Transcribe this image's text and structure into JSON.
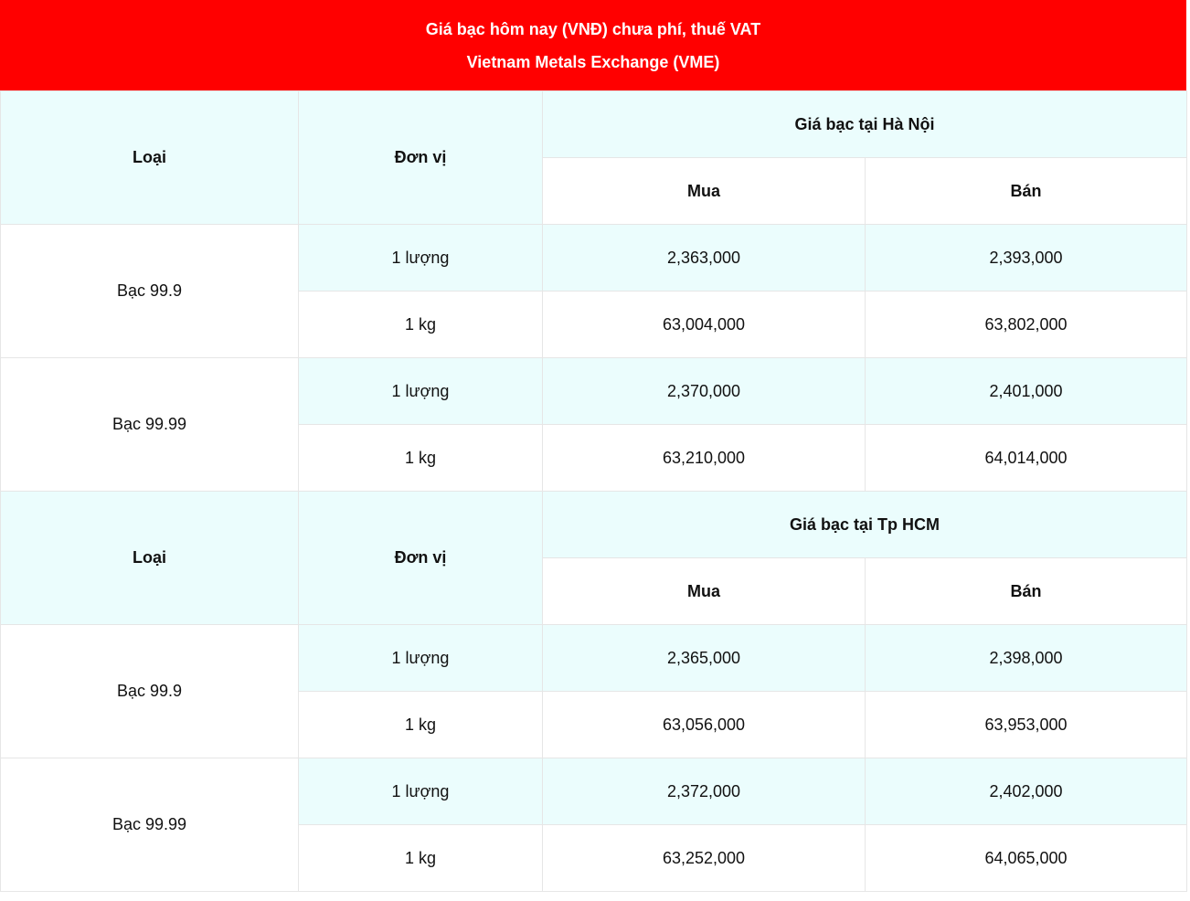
{
  "header": {
    "title_lines": [
      "Giá bạc hôm nay (VNĐ) chưa phí, thuế VAT",
      "Vietnam Metals Exchange (VME)"
    ]
  },
  "sections": [
    {
      "columns": {
        "type": "Loại",
        "unit": "Đơn vị",
        "location": "Giá bạc tại Hà Nội",
        "buy": "Mua",
        "sell": "Bán"
      },
      "groups": [
        {
          "type": "Bạc 99.9",
          "rows": [
            {
              "unit": "1 lượng",
              "buy": "2,363,000",
              "sell": "2,393,000"
            },
            {
              "unit": "1 kg",
              "buy": "63,004,000",
              "sell": "63,802,000"
            }
          ]
        },
        {
          "type": "Bạc 99.99",
          "rows": [
            {
              "unit": "1 lượng",
              "buy": "2,370,000",
              "sell": "2,401,000"
            },
            {
              "unit": "1 kg",
              "buy": "63,210,000",
              "sell": "64,014,000"
            }
          ]
        }
      ]
    },
    {
      "columns": {
        "type": "Loại",
        "unit": "Đơn vị",
        "location": "Giá bạc tại Tp HCM",
        "buy": "Mua",
        "sell": "Bán"
      },
      "groups": [
        {
          "type": "Bạc 99.9",
          "rows": [
            {
              "unit": "1 lượng",
              "buy": "2,365,000",
              "sell": "2,398,000"
            },
            {
              "unit": "1 kg",
              "buy": "63,056,000",
              "sell": "63,953,000"
            }
          ]
        },
        {
          "type": "Bạc 99.99",
          "rows": [
            {
              "unit": "1 lượng",
              "buy": "2,372,000",
              "sell": "2,402,000"
            },
            {
              "unit": "1 kg",
              "buy": "63,252,000",
              "sell": "64,065,000"
            }
          ]
        }
      ]
    }
  ]
}
